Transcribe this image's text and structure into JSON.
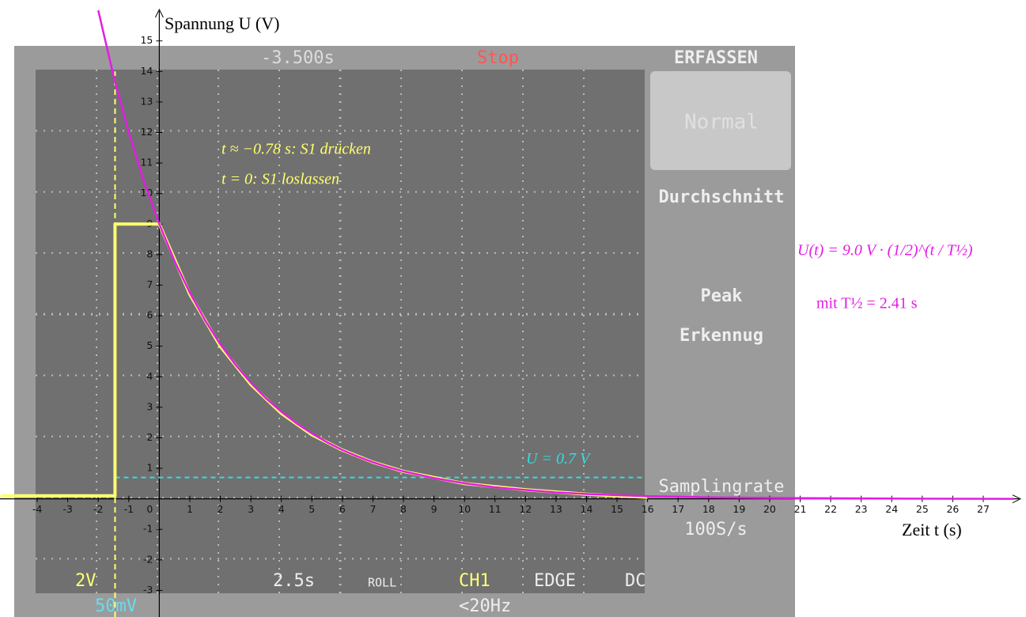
{
  "chart_data": {
    "type": "line",
    "y_label": "Spannung U (V)",
    "x_label": "Zeit t (s)",
    "xlim": [
      -5.22,
      28.4
    ],
    "ylim": [
      -3.87,
      16.34
    ],
    "xticks": [
      -4,
      -3,
      -2,
      -1,
      0,
      1,
      2,
      3,
      4,
      5,
      6,
      7,
      8,
      9,
      10,
      11,
      12,
      13,
      14,
      15,
      16,
      17,
      18,
      19,
      20,
      21,
      22,
      23,
      24,
      25,
      26,
      27
    ],
    "yticks": [
      -3,
      -2,
      -1,
      1,
      2,
      3,
      4,
      5,
      6,
      7,
      8,
      9,
      10,
      11,
      12,
      13,
      14,
      15
    ],
    "series": [
      {
        "color": "#e21de2",
        "x": [
          -2,
          -1.5,
          -1,
          -0.5,
          0,
          0.5,
          1,
          1.5,
          2,
          2.5,
          3,
          3.5,
          4,
          4.5,
          5,
          5.5,
          6,
          6.5,
          7,
          7.5,
          8,
          9,
          10,
          11,
          12,
          13,
          14,
          15,
          16,
          17,
          18,
          19,
          20,
          22,
          24,
          28
        ],
        "values": [
          16.0,
          13.86,
          12.0,
          10.39,
          9.0,
          7.79,
          6.75,
          5.85,
          5.06,
          4.39,
          3.8,
          3.29,
          2.85,
          2.47,
          2.14,
          1.85,
          1.6,
          1.39,
          1.2,
          1.04,
          0.9,
          0.68,
          0.51,
          0.38,
          0.29,
          0.21,
          0.16,
          0.12,
          0.09,
          0.07,
          0.05,
          0.04,
          0.03,
          0.02,
          0.01,
          0.0
        ]
      },
      {
        "color": "#ffff70",
        "x": [
          -5.2,
          -1.45,
          -1.45,
          0,
          1,
          2,
          3,
          4,
          5,
          6,
          7,
          8,
          10,
          12,
          14,
          16
        ],
        "values": [
          0.1,
          0.1,
          9,
          9,
          6.7,
          5.0,
          3.75,
          2.8,
          2.1,
          1.6,
          1.2,
          0.9,
          0.5,
          0.3,
          0.15,
          0.05
        ]
      }
    ],
    "vline": {
      "value": -1.45,
      "color": "#ffff70"
    },
    "hline": {
      "value": 0.7,
      "label": "U = 0.7 V",
      "color": "#33dddd"
    },
    "annotations": [
      "t ≈ −0.78 s: S1 drücken",
      "t = 0: S1 loslassen"
    ],
    "formula": "U(t) = 9.0 V · (1/2)^(t / T½)",
    "formula_note": "mit T½ = 2.41 s"
  },
  "scope": {
    "top": [
      "-3.500s",
      "Stop"
    ],
    "menu": [
      "ERFASSEN",
      "Normal",
      "Durchschnitt",
      "Peak",
      "Erkennug",
      "Samplingrate",
      "100S/s"
    ],
    "bottom": [
      "2V",
      "50mV",
      "2.5s",
      "ROLL",
      "CH1",
      "EDGE",
      "DC",
      "<20Hz"
    ]
  }
}
